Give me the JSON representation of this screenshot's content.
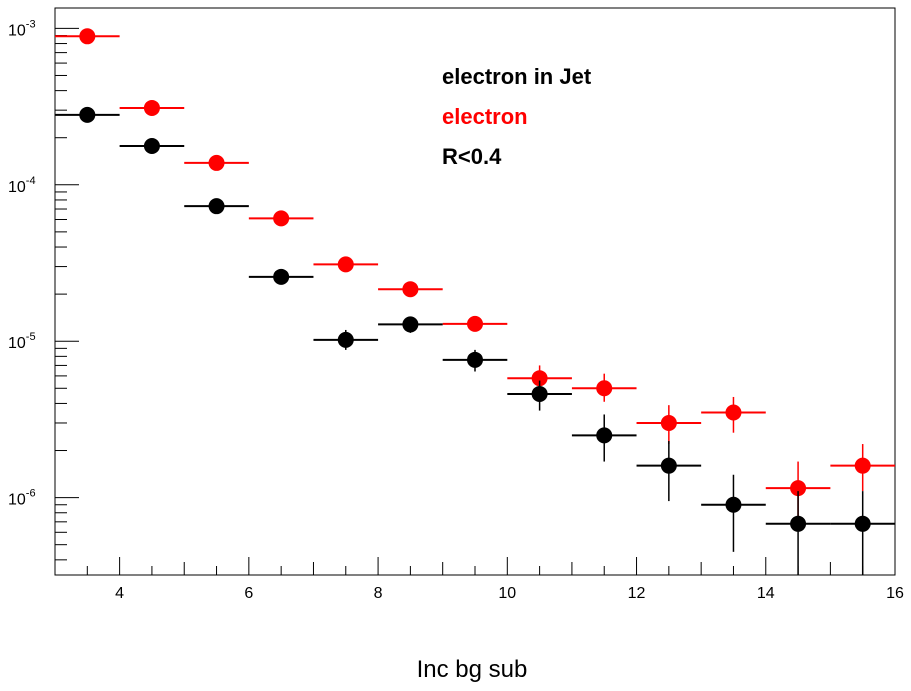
{
  "chart_data": {
    "type": "scatter",
    "xlabel": "Inc bg sub",
    "ylabel": "",
    "xlim": [
      3,
      16
    ],
    "ylim": [
      3.2e-07,
      0.00135
    ],
    "y_scale": "log",
    "grid": false,
    "x_ticks": [
      4,
      6,
      8,
      10,
      12,
      14,
      16
    ],
    "x_tick_labels": [
      "4",
      "6",
      "8",
      "10",
      "12",
      "14",
      "16"
    ],
    "y_ticks": [
      {
        "value": 0.001,
        "base": "10",
        "exp": "-3"
      },
      {
        "value": 0.0001,
        "base": "10",
        "exp": "-4"
      },
      {
        "value": 1e-05,
        "base": "10",
        "exp": "-5"
      },
      {
        "value": 1e-06,
        "base": "10",
        "exp": "-6"
      }
    ],
    "annotations": [
      {
        "text": "electron in Jet",
        "color": "#000000"
      },
      {
        "text": "electron",
        "color": "#ff0000"
      },
      {
        "text": " R<0.4",
        "color": "#000000"
      }
    ],
    "series": [
      {
        "color": "#ff0000",
        "points": [
          {
            "x": 3.5,
            "xerr": 0.5,
            "y": 0.00089,
            "ylo": 0.00089,
            "yhi": 0.00089
          },
          {
            "x": 4.5,
            "xerr": 0.5,
            "y": 0.00031,
            "ylo": 0.00031,
            "yhi": 0.00031
          },
          {
            "x": 5.5,
            "xerr": 0.5,
            "y": 0.000138,
            "ylo": 0.000138,
            "yhi": 0.000138
          },
          {
            "x": 6.5,
            "xerr": 0.5,
            "y": 6.1e-05,
            "ylo": 6.1e-05,
            "yhi": 6.1e-05
          },
          {
            "x": 7.5,
            "xerr": 0.5,
            "y": 3.1e-05,
            "ylo": 3.1e-05,
            "yhi": 3.1e-05
          },
          {
            "x": 8.5,
            "xerr": 0.5,
            "y": 2.15e-05,
            "ylo": 2.15e-05,
            "yhi": 2.15e-05
          },
          {
            "x": 9.5,
            "xerr": 0.5,
            "y": 1.29e-05,
            "ylo": 1.29e-05,
            "yhi": 1.29e-05
          },
          {
            "x": 10.5,
            "xerr": 0.5,
            "y": 5.8e-06,
            "ylo": 4.8e-06,
            "yhi": 7e-06
          },
          {
            "x": 11.5,
            "xerr": 0.5,
            "y": 5e-06,
            "ylo": 4.1e-06,
            "yhi": 6.2e-06
          },
          {
            "x": 12.5,
            "xerr": 0.5,
            "y": 3e-06,
            "ylo": 2.2e-06,
            "yhi": 3.9e-06
          },
          {
            "x": 13.5,
            "xerr": 0.5,
            "y": 3.5e-06,
            "ylo": 2.6e-06,
            "yhi": 4.4e-06
          },
          {
            "x": 14.5,
            "xerr": 0.5,
            "y": 1.15e-06,
            "ylo": 7e-07,
            "yhi": 1.7e-06
          },
          {
            "x": 15.5,
            "xerr": 0.5,
            "y": 1.6e-06,
            "ylo": 1.1e-06,
            "yhi": 2.2e-06
          }
        ]
      },
      {
        "color": "#000000",
        "points": [
          {
            "x": 3.5,
            "xerr": 0.5,
            "y": 0.00028,
            "ylo": 0.00028,
            "yhi": 0.00028
          },
          {
            "x": 4.5,
            "xerr": 0.5,
            "y": 0.000177,
            "ylo": 0.000177,
            "yhi": 0.000177
          },
          {
            "x": 5.5,
            "xerr": 0.5,
            "y": 7.3e-05,
            "ylo": 7.3e-05,
            "yhi": 7.3e-05
          },
          {
            "x": 6.5,
            "xerr": 0.5,
            "y": 2.58e-05,
            "ylo": 2.58e-05,
            "yhi": 2.58e-05
          },
          {
            "x": 7.5,
            "xerr": 0.5,
            "y": 1.02e-05,
            "ylo": 8.8e-06,
            "yhi": 1.18e-05
          },
          {
            "x": 8.5,
            "xerr": 0.5,
            "y": 1.28e-05,
            "ylo": 1.13e-05,
            "yhi": 1.28e-05
          },
          {
            "x": 9.5,
            "xerr": 0.5,
            "y": 7.6e-06,
            "ylo": 6.4e-06,
            "yhi": 8.8e-06
          },
          {
            "x": 10.5,
            "xerr": 0.5,
            "y": 4.6e-06,
            "ylo": 3.6e-06,
            "yhi": 5.6e-06
          },
          {
            "x": 11.5,
            "xerr": 0.5,
            "y": 2.5e-06,
            "ylo": 1.7e-06,
            "yhi": 3.4e-06
          },
          {
            "x": 12.5,
            "xerr": 0.5,
            "y": 1.6e-06,
            "ylo": 9.5e-07,
            "yhi": 2.3e-06
          },
          {
            "x": 13.5,
            "xerr": 0.5,
            "y": 9e-07,
            "ylo": 4.5e-07,
            "yhi": 1.4e-06
          },
          {
            "x": 14.5,
            "xerr": 0.5,
            "y": 6.8e-07,
            "ylo": 3.2e-07,
            "yhi": 1.1e-06
          },
          {
            "x": 15.5,
            "xerr": 0.5,
            "y": 6.8e-07,
            "ylo": 3.2e-07,
            "yhi": 1.1e-06
          }
        ]
      }
    ]
  }
}
